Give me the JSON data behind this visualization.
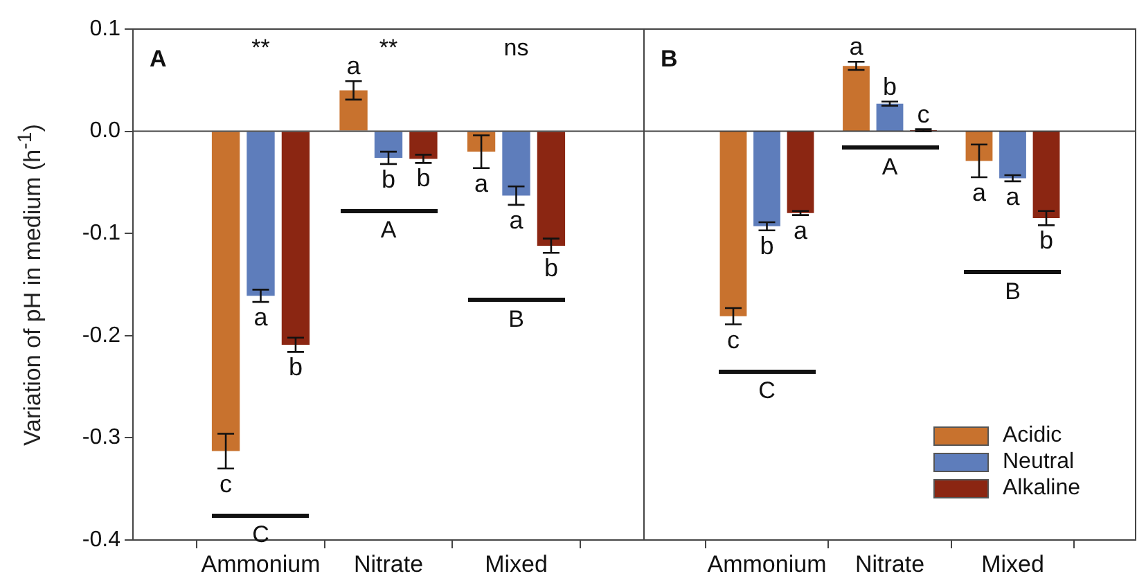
{
  "chart_data": [
    {
      "type": "bar",
      "title": "A",
      "ylabel": "Variation of pH in medium (h$^{-1}$)",
      "categories": [
        "Ammonium",
        "Nitrate",
        "Mixed"
      ],
      "series": [
        {
          "color": "#c8722e",
          "values": [
            -0.313,
            0.04,
            -0.02
          ],
          "errors": [
            0.017,
            0.009,
            0.016
          ],
          "value_labels": [
            "c",
            "a",
            "a"
          ]
        },
        {
          "color": "#5e7dbb",
          "values": [
            -0.161,
            -0.026,
            -0.063
          ],
          "errors": [
            0.006,
            0.006,
            0.009
          ],
          "value_labels": [
            "a",
            "b",
            "a"
          ]
        },
        {
          "color": "#8b2612",
          "values": [
            -0.209,
            -0.027,
            -0.112
          ],
          "errors": [
            0.007,
            0.004,
            0.007
          ],
          "value_labels": [
            "b",
            "b",
            "b"
          ]
        }
      ],
      "ylim": [
        -0.4,
        0.1
      ],
      "yticks": [
        0.1,
        {
          "value": 0,
          "label": "0.0"
        },
        -0.1,
        -0.2,
        -0.3,
        -0.4
      ],
      "ref_lines": [
        {
          "axis": "y",
          "value": 0
        }
      ],
      "annotations": [
        "**",
        "**",
        "ns",
        "C",
        "A",
        "B"
      ],
      "grid": false,
      "legend": false
    },
    {
      "type": "bar",
      "title": "B",
      "categories": [
        "Ammonium",
        "Nitrate",
        "Mixed"
      ],
      "series": [
        {
          "name": "Acidic",
          "color": "#c8722e",
          "values": [
            -0.181,
            0.064,
            -0.029
          ],
          "errors": [
            0.008,
            0.004,
            0.016
          ],
          "value_labels": [
            "c",
            "a",
            "a"
          ]
        },
        {
          "name": "Neutral",
          "color": "#5e7dbb",
          "values": [
            -0.093,
            0.027,
            -0.046
          ],
          "errors": [
            0.004,
            0.002,
            0.003
          ],
          "value_labels": [
            "b",
            "b",
            "a"
          ]
        },
        {
          "name": "Alkaline",
          "color": "#8b2612",
          "values": [
            -0.08,
            0.001,
            -0.085
          ],
          "errors": [
            0.002,
            0.001,
            0.007
          ],
          "value_labels": [
            "a",
            "c",
            "b"
          ]
        }
      ],
      "ylim": [
        -0.4,
        0.1
      ],
      "tick_labels": "x",
      "ref_lines": [
        {
          "axis": "y",
          "value": 0
        }
      ],
      "annotations": [
        "C",
        "A",
        "B"
      ],
      "grid": false,
      "legend": "bottom right"
    }
  ]
}
